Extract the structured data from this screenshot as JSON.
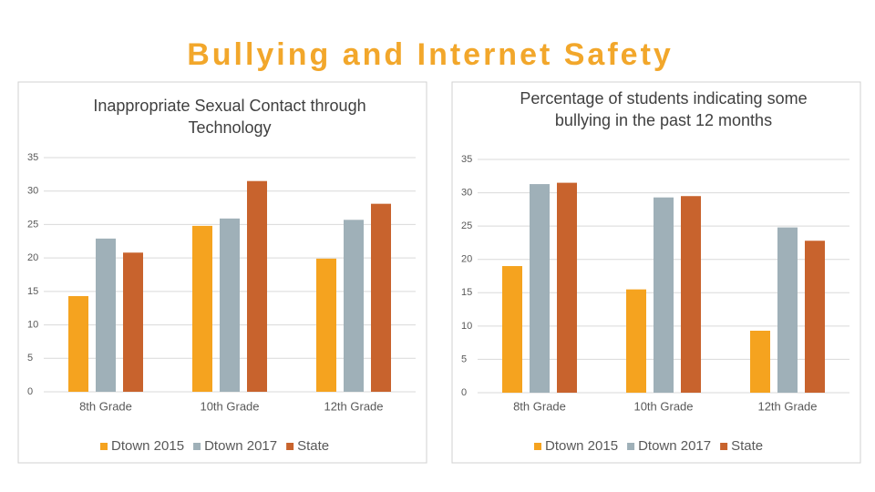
{
  "page_title": "Bullying and Internet Safety",
  "chart_data": [
    {
      "type": "bar",
      "title": "Inappropriate Sexual Contact through Technology",
      "categories": [
        "8th Grade",
        "10th Grade",
        "12th Grade"
      ],
      "series": [
        {
          "name": "Dtown 2015",
          "color": "#f5a31f",
          "values": [
            14.3,
            24.8,
            19.9
          ]
        },
        {
          "name": "Dtown 2017",
          "color": "#9fb0b8",
          "values": [
            22.9,
            25.9,
            25.7
          ]
        },
        {
          "name": "State",
          "color": "#c8632d",
          "values": [
            20.8,
            31.5,
            28.1
          ]
        }
      ],
      "ylim": [
        0,
        35
      ],
      "yticks": [
        0,
        5,
        10,
        15,
        20,
        25,
        30,
        35
      ],
      "grid": true,
      "legend": "bottom"
    },
    {
      "type": "bar",
      "title": "Percentage of students indicating some bullying in the past 12 months",
      "categories": [
        "8th Grade",
        "10th Grade",
        "12th Grade"
      ],
      "series": [
        {
          "name": "Dtown 2015",
          "color": "#f5a31f",
          "values": [
            19.0,
            15.5,
            9.3
          ]
        },
        {
          "name": "Dtown 2017",
          "color": "#9fb0b8",
          "values": [
            31.3,
            29.3,
            24.8
          ]
        },
        {
          "name": "State",
          "color": "#c8632d",
          "values": [
            31.5,
            29.5,
            22.8
          ]
        }
      ],
      "ylim": [
        0,
        35
      ],
      "yticks": [
        0,
        5,
        10,
        15,
        20,
        25,
        30,
        35
      ],
      "grid": true,
      "legend": "bottom"
    }
  ]
}
